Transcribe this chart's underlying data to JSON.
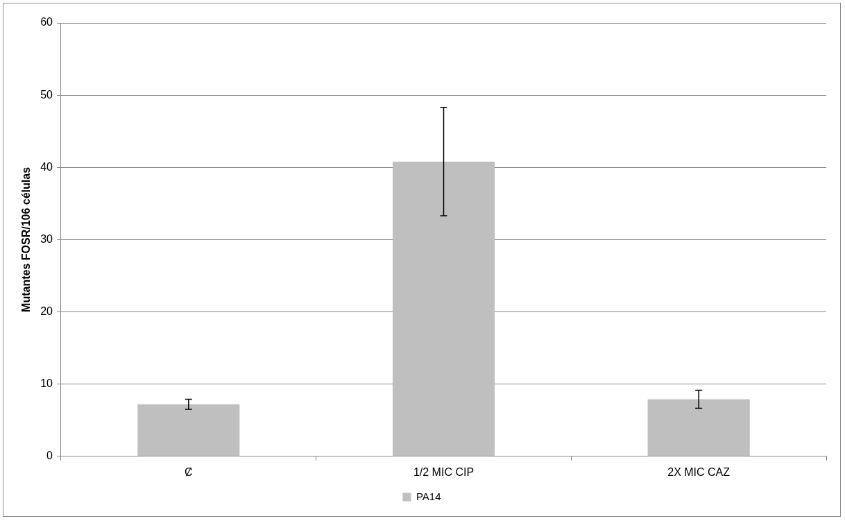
{
  "chart_data": {
    "type": "bar",
    "ylabel": "Mutantes FOSR/106 células",
    "categories": [
      "Ȼ",
      "1/2 MIC CIP",
      "2X MIC CAZ"
    ],
    "series": [
      {
        "name": "PA14",
        "color": "#bfbfbf",
        "values": [
          7.2,
          40.8,
          7.9
        ],
        "errors": [
          0.7,
          7.5,
          1.25
        ]
      }
    ],
    "ylim": [
      0,
      60
    ],
    "yticks": [
      0,
      10,
      20,
      30,
      40,
      50,
      60
    ],
    "grid": "y",
    "legend": "bottom"
  }
}
